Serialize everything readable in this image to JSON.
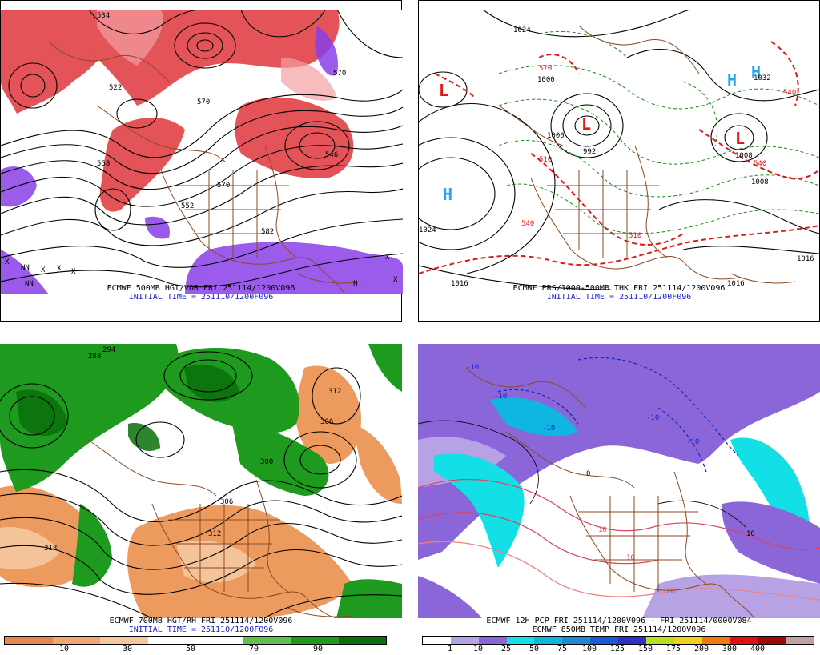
{
  "panels": {
    "p1": {
      "title": "ECMWF 500MB HGT/VOR FRI 251114/1200V096",
      "init": "INITIAL TIME = 251110/1200F096",
      "contour_labels": [
        "534",
        "522",
        "570",
        "558",
        "570",
        "546",
        "552",
        "582",
        "570"
      ]
    },
    "p2": {
      "title": "ECMWF PRS/1000-500MB THK FRI 251114/1200V096",
      "init": "INITIAL TIME = 251110/1200F096",
      "contour_labels": [
        "1024",
        "1000",
        "1032",
        "1024",
        "1016",
        "1016",
        "1000",
        "992",
        "1008",
        "1008",
        "1016",
        "540",
        "540",
        "570",
        "510",
        "540",
        "510"
      ],
      "symbols": [
        "L",
        "L",
        "L",
        "H",
        "H",
        "H"
      ]
    },
    "p3": {
      "title": "ECMWF 700MB HGT/RH FRI 251114/1200V096",
      "init": "INITIAL TIME = 251110/1200F096",
      "contour_labels": [
        "294",
        "288",
        "312",
        "306",
        "300",
        "318",
        "312",
        "306"
      ],
      "colorbar": {
        "colors": [
          "#e8874a",
          "#f0a870",
          "#f6c8a0",
          "#ffffff",
          "#ffffff",
          "#60c050",
          "#1e9a1e",
          "#0a6e0a"
        ],
        "labels": [
          "10",
          "30",
          "50",
          "70",
          "90"
        ]
      }
    },
    "p4": {
      "title": "ECMWF 12H PCP FRI 251114/1200V096 - FRI 251114/0000V084",
      "title2": "ECMWF 850MB TEMP FRI 251114/1200V096",
      "contour_labels": [
        "-10",
        "-10",
        "-10",
        "-10",
        "-10",
        "10",
        "10",
        "20",
        "0",
        "10"
      ],
      "colorbar": {
        "colors": [
          "#ffffff",
          "#b7a2e6",
          "#8a66d8",
          "#13e0e6",
          "#0fb6e0",
          "#1e8ad6",
          "#1a5ad8",
          "#2f30c8",
          "#b8e020",
          "#f0d020",
          "#f07a10",
          "#e01010",
          "#a00808",
          "#c0a0a0"
        ],
        "labels": [
          "1",
          "10",
          "25",
          "50",
          "75",
          "100",
          "125",
          "150",
          "175",
          "200",
          "300",
          "400"
        ]
      }
    }
  }
}
